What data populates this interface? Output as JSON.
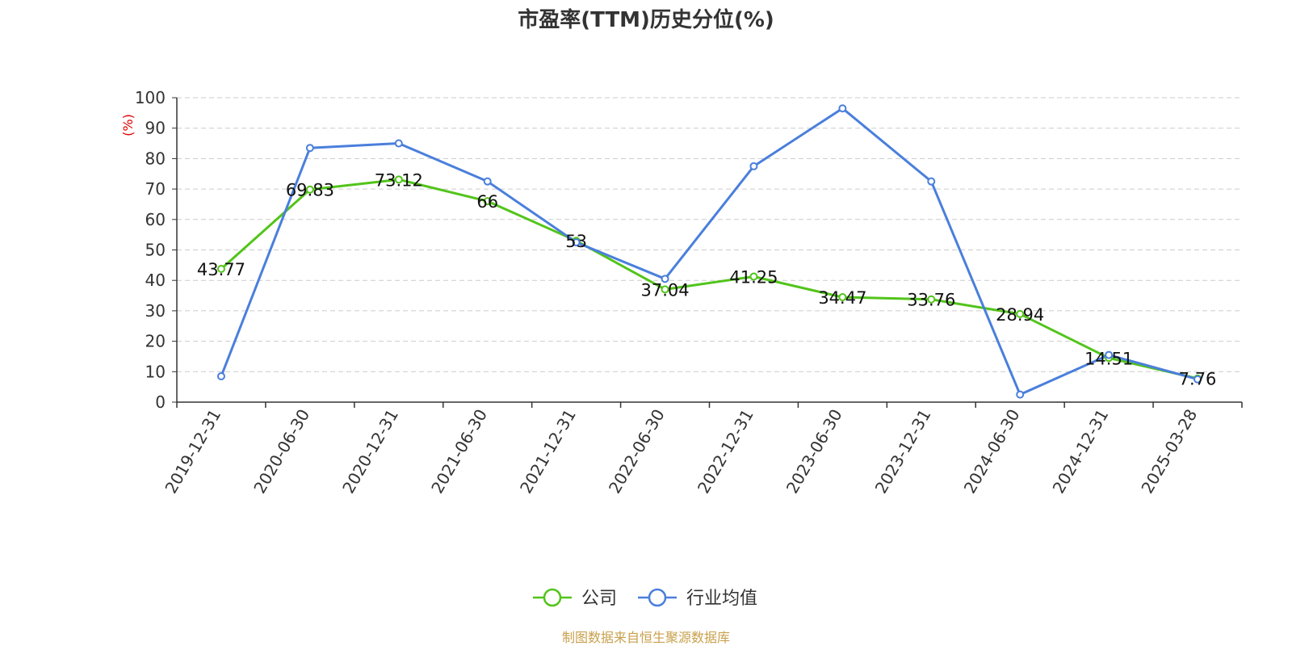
{
  "chart_data": {
    "type": "line",
    "title": "市盈率(TTM)历史分位(%)",
    "ylabel": "(%)",
    "xlabel": "",
    "ylim": [
      0,
      100
    ],
    "yticks": [
      0,
      10,
      20,
      30,
      40,
      50,
      60,
      70,
      80,
      90,
      100
    ],
    "grid": true,
    "legend_position": "bottom-center",
    "categories": [
      "2019-12-31",
      "2020-06-30",
      "2020-12-31",
      "2021-06-30",
      "2021-12-31",
      "2022-06-30",
      "2022-12-31",
      "2023-06-30",
      "2023-12-31",
      "2024-06-30",
      "2024-12-31",
      "2025-03-28"
    ],
    "series": [
      {
        "name": "公司",
        "color": "#52c41a",
        "values": [
          43.77,
          69.83,
          73.12,
          66,
          53,
          37.04,
          41.25,
          34.47,
          33.76,
          28.94,
          14.51,
          7.76
        ],
        "labels": [
          "43.77",
          "69.83",
          "73.12",
          "66",
          "53",
          "37.04",
          "41.25",
          "34.47",
          "33.76",
          "28.94",
          "14.51",
          "7.76"
        ]
      },
      {
        "name": "行业均值",
        "color": "#4a7fdc",
        "values": [
          8.5,
          83.5,
          85,
          72.5,
          52.5,
          40.5,
          77.5,
          96.5,
          72.5,
          2.5,
          15.5,
          7.5
        ]
      }
    ]
  },
  "source": "制图数据来自恒生聚源数据库"
}
